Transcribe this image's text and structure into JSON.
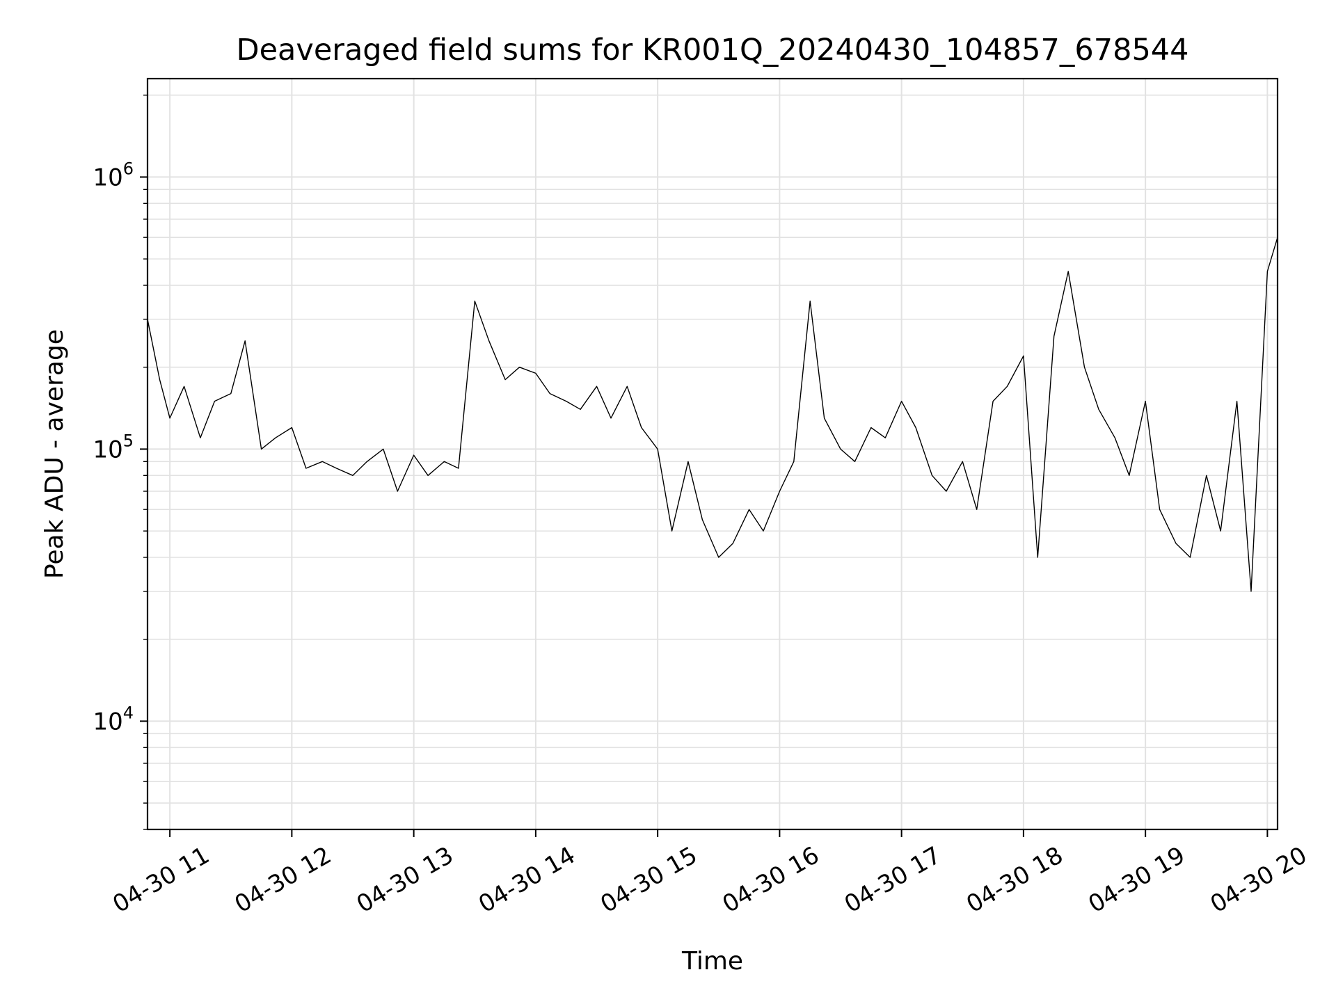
{
  "chart_data": {
    "type": "line",
    "title": "Deaveraged field sums for KR001Q_20240430_104857_678544",
    "xlabel": "Time",
    "ylabel": "Peak ADU - average",
    "y_scale": "log",
    "ylim": [
      4000,
      2300000
    ],
    "xlim": [
      "2024-04-30 10:49",
      "2024-04-30 20:05"
    ],
    "grid": true,
    "x_ticks": [
      {
        "time": "2024-04-30 11:00",
        "label": "04-30 11"
      },
      {
        "time": "2024-04-30 12:00",
        "label": "04-30 12"
      },
      {
        "time": "2024-04-30 13:00",
        "label": "04-30 13"
      },
      {
        "time": "2024-04-30 14:00",
        "label": "04-30 14"
      },
      {
        "time": "2024-04-30 15:00",
        "label": "04-30 15"
      },
      {
        "time": "2024-04-30 16:00",
        "label": "04-30 16"
      },
      {
        "time": "2024-04-30 17:00",
        "label": "04-30 17"
      },
      {
        "time": "2024-04-30 18:00",
        "label": "04-30 18"
      },
      {
        "time": "2024-04-30 19:00",
        "label": "04-30 19"
      },
      {
        "time": "2024-04-30 20:00",
        "label": "04-30 20"
      }
    ],
    "y_ticks": [
      {
        "value": 10000,
        "label": "10^4"
      },
      {
        "value": 100000,
        "label": "10^5"
      },
      {
        "value": 1000000,
        "label": "10^6"
      }
    ],
    "series": [
      {
        "color": "#000000",
        "x": [
          "2024-04-30 10:49",
          "2024-04-30 10:55",
          "2024-04-30 11:00",
          "2024-04-30 11:07",
          "2024-04-30 11:15",
          "2024-04-30 11:22",
          "2024-04-30 11:30",
          "2024-04-30 11:37",
          "2024-04-30 11:45",
          "2024-04-30 11:52",
          "2024-04-30 12:00",
          "2024-04-30 12:07",
          "2024-04-30 12:15",
          "2024-04-30 12:22",
          "2024-04-30 12:30",
          "2024-04-30 12:37",
          "2024-04-30 12:45",
          "2024-04-30 12:52",
          "2024-04-30 13:00",
          "2024-04-30 13:07",
          "2024-04-30 13:15",
          "2024-04-30 13:22",
          "2024-04-30 13:30",
          "2024-04-30 13:37",
          "2024-04-30 13:45",
          "2024-04-30 13:52",
          "2024-04-30 14:00",
          "2024-04-30 14:07",
          "2024-04-30 14:15",
          "2024-04-30 14:22",
          "2024-04-30 14:30",
          "2024-04-30 14:37",
          "2024-04-30 14:45",
          "2024-04-30 14:52",
          "2024-04-30 15:00",
          "2024-04-30 15:07",
          "2024-04-30 15:15",
          "2024-04-30 15:22",
          "2024-04-30 15:30",
          "2024-04-30 15:37",
          "2024-04-30 15:45",
          "2024-04-30 15:52",
          "2024-04-30 16:00",
          "2024-04-30 16:07",
          "2024-04-30 16:15",
          "2024-04-30 16:22",
          "2024-04-30 16:30",
          "2024-04-30 16:37",
          "2024-04-30 16:45",
          "2024-04-30 16:52",
          "2024-04-30 17:00",
          "2024-04-30 17:07",
          "2024-04-30 17:15",
          "2024-04-30 17:22",
          "2024-04-30 17:30",
          "2024-04-30 17:37",
          "2024-04-30 17:45",
          "2024-04-30 17:52",
          "2024-04-30 18:00",
          "2024-04-30 18:07",
          "2024-04-30 18:15",
          "2024-04-30 18:22",
          "2024-04-30 18:30",
          "2024-04-30 18:37",
          "2024-04-30 18:45",
          "2024-04-30 18:52",
          "2024-04-30 19:00",
          "2024-04-30 19:07",
          "2024-04-30 19:15",
          "2024-04-30 19:22",
          "2024-04-30 19:30",
          "2024-04-30 19:37",
          "2024-04-30 19:45",
          "2024-04-30 19:52",
          "2024-04-30 20:00",
          "2024-04-30 20:05"
        ],
        "y": [
          300000,
          180000,
          130000,
          170000,
          110000,
          150000,
          160000,
          250000,
          100000,
          110000,
          120000,
          85000,
          90000,
          85000,
          80000,
          90000,
          100000,
          70000,
          95000,
          80000,
          90000,
          85000,
          350000,
          250000,
          180000,
          200000,
          190000,
          160000,
          150000,
          140000,
          170000,
          130000,
          170000,
          120000,
          100000,
          50000,
          90000,
          55000,
          40000,
          45000,
          60000,
          50000,
          70000,
          90000,
          350000,
          130000,
          100000,
          90000,
          120000,
          110000,
          150000,
          120000,
          80000,
          70000,
          90000,
          60000,
          150000,
          170000,
          220000,
          40000,
          260000,
          450000,
          200000,
          140000,
          110000,
          80000,
          150000,
          60000,
          45000,
          40000,
          80000,
          50000,
          150000,
          30000,
          450000,
          600000
        ]
      }
    ]
  }
}
